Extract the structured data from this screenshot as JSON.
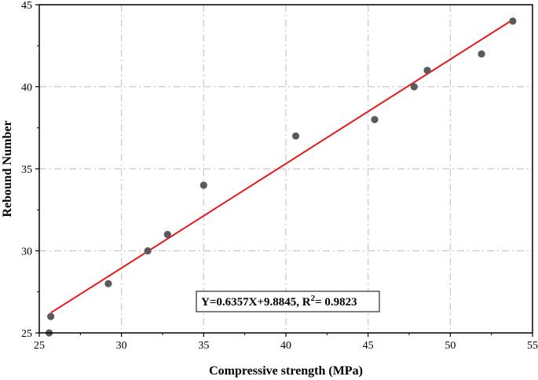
{
  "chart_data": {
    "type": "scatter",
    "xlabel": "Compressive strength (MPa)",
    "ylabel": "Rebound Number",
    "xlim": [
      25,
      55
    ],
    "ylim": [
      25,
      45
    ],
    "xticks": [
      25,
      30,
      35,
      40,
      45,
      50,
      55
    ],
    "yticks": [
      25,
      30,
      35,
      40,
      45
    ],
    "grid": true,
    "series": [
      {
        "marker_color": "#5a5a5a",
        "points": [
          {
            "x": 25.6,
            "y": 25
          },
          {
            "x": 25.7,
            "y": 26
          },
          {
            "x": 29.2,
            "y": 28
          },
          {
            "x": 31.6,
            "y": 30
          },
          {
            "x": 32.8,
            "y": 31
          },
          {
            "x": 35.0,
            "y": 34
          },
          {
            "x": 40.6,
            "y": 37
          },
          {
            "x": 45.4,
            "y": 38
          },
          {
            "x": 47.8,
            "y": 40
          },
          {
            "x": 48.6,
            "y": 41
          },
          {
            "x": 51.9,
            "y": 42
          },
          {
            "x": 53.8,
            "y": 44
          }
        ]
      }
    ],
    "fit": {
      "slope": 0.6357,
      "intercept": 9.8845,
      "x_range": [
        25.7,
        53.8
      ],
      "color": "#e8191a"
    },
    "annotation": {
      "eq_prefix": "Y=0.6357X+9.8845, R",
      "eq_sup": "2",
      "eq_suffix": "= 0.9823"
    }
  }
}
